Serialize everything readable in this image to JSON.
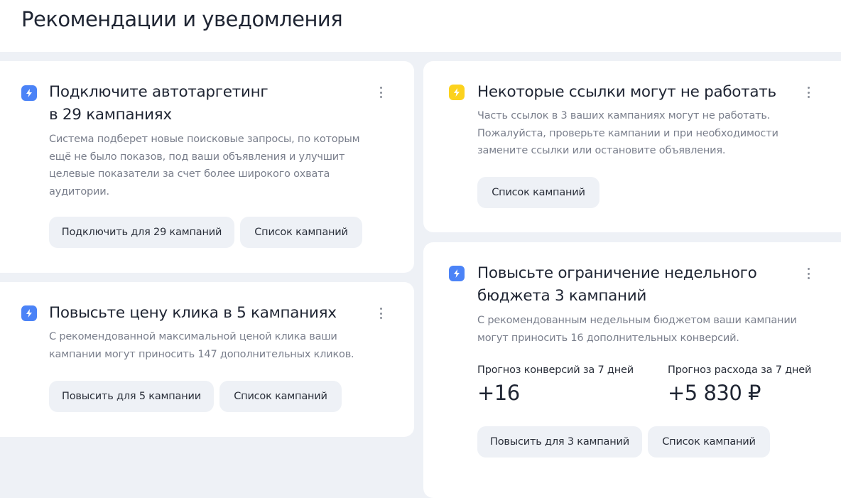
{
  "page_title": "Рекомендации и уведомления",
  "colors": {
    "accent_blue": "#4b83f7",
    "warning_yellow": "#fcd21d",
    "background": "#eef1f6"
  },
  "cards": [
    {
      "icon": "lightning-icon",
      "title_line1": "Подключите автотаргетинг",
      "title_line2": "в 29 кампаниях",
      "description": [
        "Система подберет новые поисковые запросы, по которым",
        "ещё не было показов, под ваши объявления и улучшит",
        "целевые показатели за счет более широкого охвата",
        "аудитории."
      ],
      "buttons": [
        "Подключить для 29 кампаний",
        "Список кампаний"
      ]
    },
    {
      "icon": "lightning-icon",
      "title_line1": "Повысьте цену клика в 5 кампаниях",
      "description": [
        "С рекомендованной максимальной ценой клика ваши",
        "кампании могут приносить 147 дополнительных кликов."
      ],
      "buttons": [
        "Повысить для 5 кампании",
        "Список кампаний"
      ]
    },
    {
      "icon": "lightning-icon",
      "title_line1": "Некоторые ссылки могут не работать",
      "description": [
        "Часть ссылок в 3 ваших кампаниях могут не работать.",
        "Пожалуйста, проверьте кампании и при необходимости",
        "замените ссылки или остановите объявления."
      ],
      "buttons": [
        "Список кампаний"
      ]
    },
    {
      "icon": "lightning-icon",
      "title_line1": "Повысьте ограничение недельного",
      "title_line2": "бюджета 3 кампаний",
      "description": [
        "С рекомендованным недельным бюджетом ваши кампании",
        "могут приносить 16 дополнительных конверсий."
      ],
      "stats": [
        {
          "label": "Прогноз конверсий за 7 дней",
          "value": "+16"
        },
        {
          "label": "Прогноз расхода за 7 дней",
          "value": "+5 830 ₽"
        }
      ],
      "buttons": [
        "Повысить для 3 кампаний",
        "Список кампаний"
      ]
    }
  ]
}
